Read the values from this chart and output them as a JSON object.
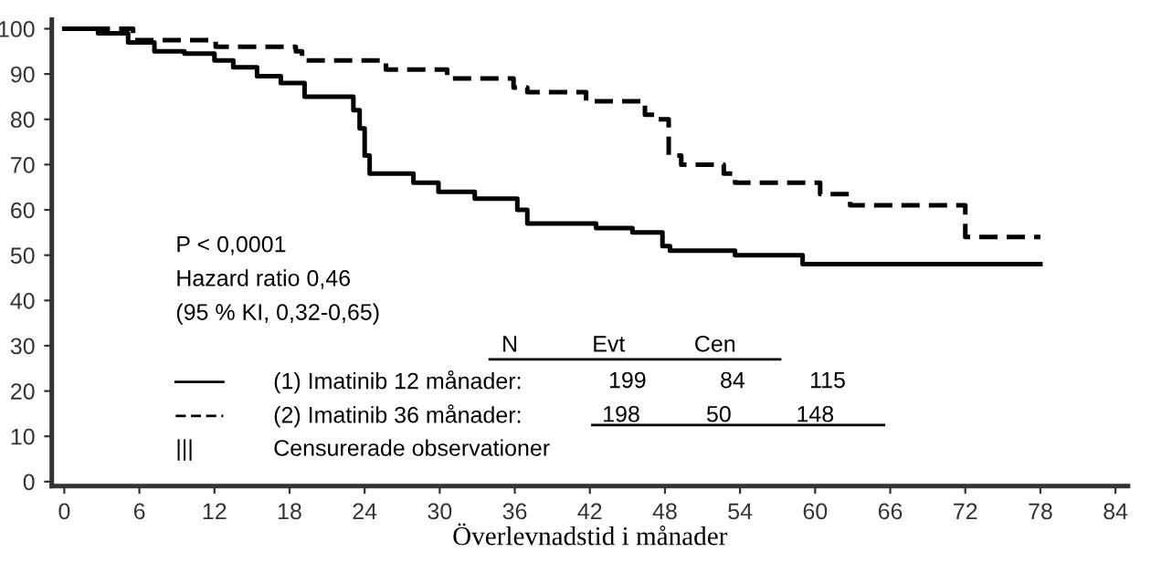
{
  "chart_data": {
    "type": "step",
    "xlabel": "Överlevnadstid i månader",
    "xlim": [
      -1,
      85
    ],
    "xticks": [
      0,
      6,
      12,
      18,
      24,
      30,
      36,
      42,
      48,
      54,
      60,
      66,
      72,
      78,
      84
    ],
    "ylim": [
      -1,
      102
    ],
    "yticks": [
      0,
      10,
      20,
      30,
      40,
      50,
      60,
      70,
      80,
      90,
      100
    ],
    "grid": false,
    "legend": "bottom left",
    "series": [
      {
        "name": "(1) Imatinib 12 månader:",
        "color": "#000000",
        "line_style": "solid",
        "x": [
          0,
          2.7,
          5.1,
          7.2,
          9.6,
          12,
          13.5,
          15.4,
          17.3,
          19.2,
          23.1,
          23.6,
          24,
          24.4,
          27.9,
          29.9,
          32.8,
          36.2,
          37,
          42.5,
          45.4,
          47.8,
          48.4,
          53.6,
          59,
          78
        ],
        "values": [
          100,
          99,
          97,
          95,
          94.5,
          93,
          91.5,
          89.5,
          88,
          85,
          82,
          78,
          72,
          68,
          66,
          64,
          62.5,
          60,
          57,
          56,
          55,
          52,
          51,
          50,
          48,
          48
        ]
      },
      {
        "name": "(2) Imatinib 36 månader:",
        "color": "#000000",
        "line_style": "dashed",
        "x": [
          0,
          5.5,
          12.1,
          18.5,
          19,
          25.7,
          30.6,
          35.9,
          37,
          41.7,
          46.4,
          47.4,
          48.3,
          49.3,
          52.7,
          53.6,
          60.4,
          62.8,
          72,
          78
        ],
        "values": [
          100,
          97.5,
          96,
          95,
          93,
          91,
          89,
          87,
          86,
          84,
          81,
          80,
          72,
          70,
          68,
          66,
          63.5,
          61,
          54,
          54
        ]
      }
    ],
    "annotations": [
      "P < 0,0001",
      "Hazard ratio 0,46",
      "(95 % KI, 0,32-0,65)",
      "N",
      "Evt",
      "Cen",
      "199",
      "84",
      "115",
      "198",
      "50",
      "148",
      "|||",
      "Censurerade observationer"
    ]
  }
}
